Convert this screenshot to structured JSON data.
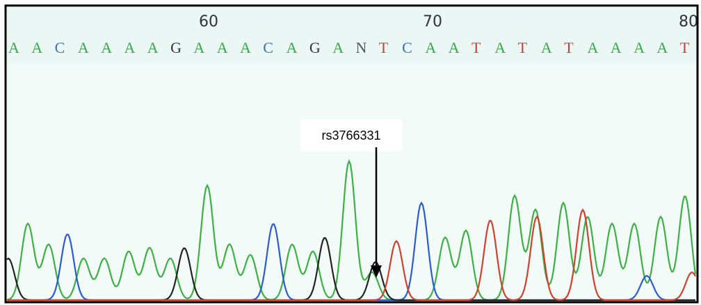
{
  "positions": [
    "60",
    "70",
    "80"
  ],
  "bases": [
    "A",
    "A",
    "C",
    "A",
    "A",
    "A",
    "A",
    "G",
    "A",
    "A",
    "A",
    "C",
    "A",
    "G",
    "A",
    "N",
    "T",
    "C",
    "A",
    "A",
    "T",
    "A",
    "T",
    "A",
    "T",
    "A",
    "A",
    "A",
    "A",
    "T"
  ],
  "annotation": "rs3766331"
}
